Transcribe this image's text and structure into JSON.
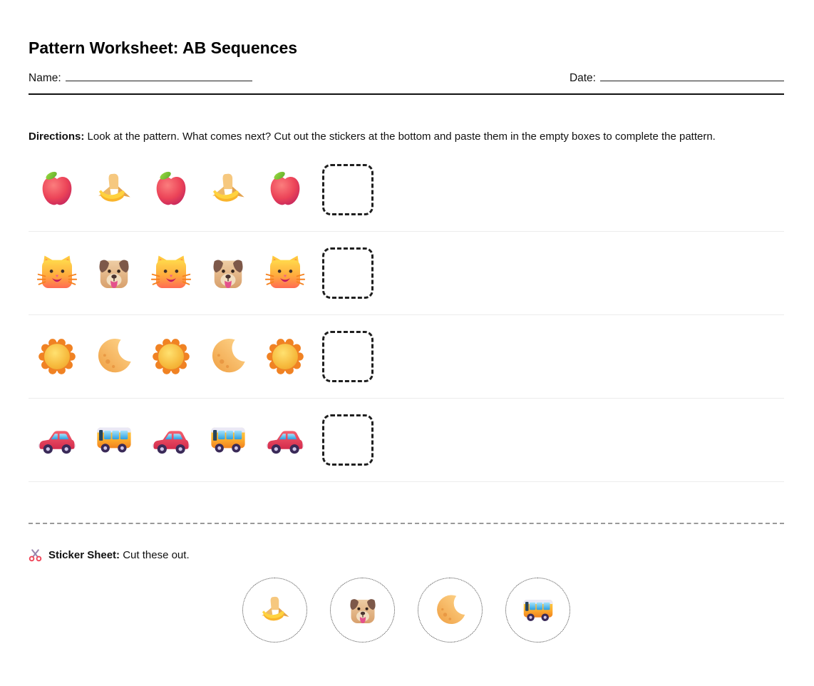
{
  "page": {
    "title": "Pattern Worksheet: AB Sequences",
    "name_label": "Name:",
    "date_label": "Date:"
  },
  "directions": {
    "label": "Directions:",
    "text": " Look at the pattern. What comes next? Cut out the stickers at the bottom and paste them in the empty boxes to complete the pattern."
  },
  "patterns": [
    {
      "name": "apple-banana",
      "sequence": [
        "apple",
        "banana",
        "apple",
        "banana",
        "apple"
      ],
      "answer": "banana"
    },
    {
      "name": "cat-dog",
      "sequence": [
        "cat",
        "dog",
        "cat",
        "dog",
        "cat"
      ],
      "answer": "dog"
    },
    {
      "name": "sun-moon",
      "sequence": [
        "sun",
        "moon",
        "sun",
        "moon",
        "sun"
      ],
      "answer": "moon"
    },
    {
      "name": "car-bus",
      "sequence": [
        "car",
        "bus",
        "car",
        "bus",
        "car"
      ],
      "answer": "bus"
    }
  ],
  "sticker_sheet": {
    "icon": "scissors-icon",
    "label": "Sticker Sheet:",
    "text": " Cut these out.",
    "stickers": [
      "banana",
      "dog",
      "moon",
      "bus"
    ]
  },
  "colors": {
    "answer_box_border": "#1f1f1f",
    "row_divider": "#ececec",
    "cut_line": "#999999",
    "header_rule": "#111111"
  }
}
